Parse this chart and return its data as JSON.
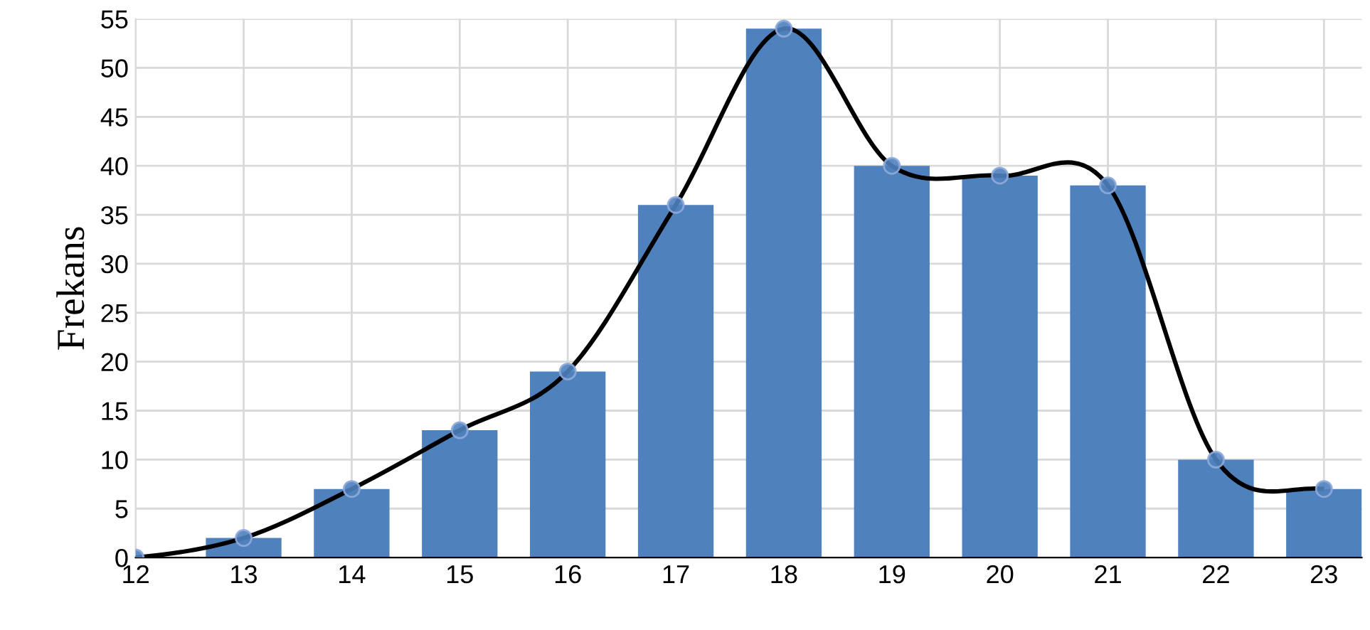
{
  "chart_data": {
    "type": "bar",
    "ylabel": "Frekans",
    "x": [
      12,
      13,
      14,
      15,
      16,
      17,
      18,
      19,
      20,
      21,
      22,
      23
    ],
    "series": [
      {
        "color": "#4f81bd",
        "values": [
          0,
          2,
          7,
          13,
          19,
          36,
          54,
          40,
          39,
          38,
          10,
          7
        ]
      },
      {
        "type": "line",
        "color": "#000000",
        "values": [
          0,
          2,
          7,
          13,
          19,
          36,
          54,
          40,
          39,
          38,
          10,
          7
        ]
      }
    ],
    "xlim": [
      12,
      23.35
    ],
    "xticks": [
      12,
      13,
      14,
      15,
      16,
      17,
      18,
      19,
      20,
      21,
      22,
      23
    ],
    "ylim": [
      0,
      55
    ],
    "yticks": [
      0,
      5,
      10,
      15,
      20,
      25,
      30,
      35,
      40,
      45,
      50,
      55
    ],
    "grid": true,
    "marker": "circle"
  }
}
